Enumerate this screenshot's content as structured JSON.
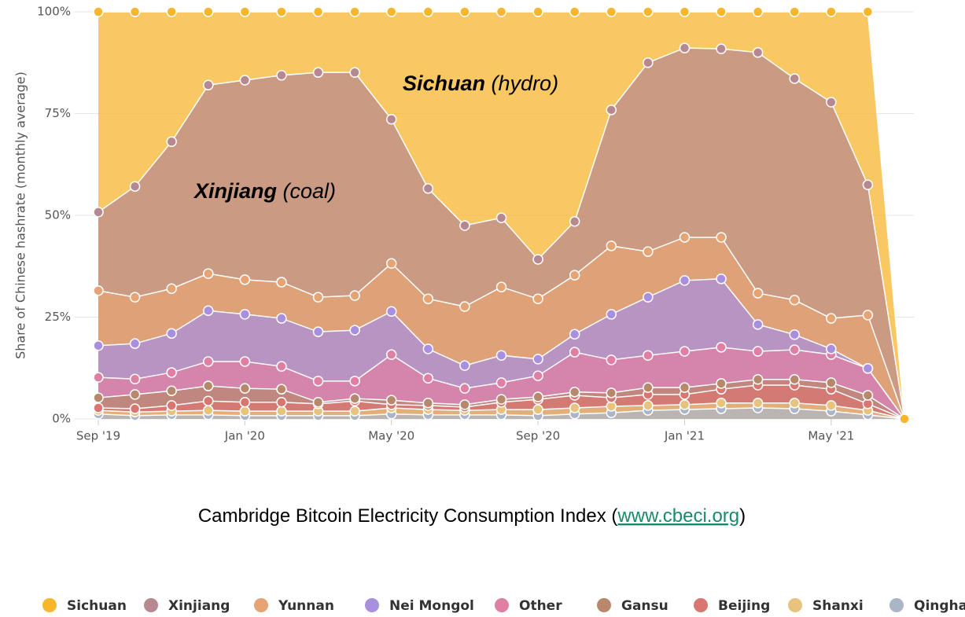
{
  "chart_data": {
    "type": "stacked_area",
    "y_label": "Share of Chinese hashrate (monthly average)",
    "categories": [
      "Sep '19",
      null,
      null,
      null,
      "Jan '20",
      null,
      null,
      null,
      "May '20",
      null,
      null,
      null,
      "Sep '20",
      null,
      null,
      null,
      "Jan '21",
      null,
      null,
      null,
      "May '21",
      null,
      null
    ],
    "ylim": [
      0,
      100
    ],
    "yticks": [
      {
        "value": 0,
        "label": "0%"
      },
      {
        "value": 25,
        "label": "25%"
      },
      {
        "value": 50,
        "label": "50%"
      },
      {
        "value": 75,
        "label": "75%"
      },
      {
        "value": 100,
        "label": "100%"
      }
    ],
    "grid": true,
    "legend": "bottom",
    "series": [
      {
        "name": "Qinghai",
        "color": "#aab5c8",
        "values": [
          1.2,
          0.8,
          1,
          1,
          0.8,
          0.8,
          0.8,
          0.8,
          1.2,
          1,
          1,
          1,
          0.8,
          1.2,
          1.5,
          2.1,
          2.3,
          2.5,
          2.7,
          2.5,
          1.9,
          1,
          0
        ]
      },
      {
        "name": "Shanxi",
        "color": "#e8c37e",
        "values": [
          0.9,
          0.9,
          0.9,
          1.1,
          1.1,
          1.1,
          1.1,
          1.1,
          1.5,
          1.3,
          1.1,
          1.3,
          1.5,
          1.5,
          1.6,
          1.2,
          1.2,
          1.4,
          1.2,
          1.4,
          1.4,
          1.1,
          0
        ]
      },
      {
        "name": "Beijing",
        "color": "#d97670",
        "values": [
          0.6,
          0.8,
          1.4,
          2.3,
          2.2,
          2.2,
          1.8,
          2.5,
          0.8,
          1,
          0.8,
          1.8,
          2.5,
          3.1,
          2.1,
          2.7,
          2.5,
          3.4,
          4.4,
          4.4,
          4,
          1.6,
          0
        ]
      },
      {
        "name": "Gansu",
        "color": "#b8886c",
        "values": [
          2.5,
          3.5,
          3.6,
          3.7,
          3.4,
          3.2,
          0.4,
          0.6,
          1.1,
          0.6,
          0.6,
          0.7,
          0.6,
          0.8,
          1.2,
          1.7,
          1.7,
          1.4,
          1.4,
          1.4,
          1.6,
          2.1,
          0
        ]
      },
      {
        "name": "Other",
        "color": "#e07fa4",
        "values": [
          5,
          3.8,
          4.5,
          6,
          6.6,
          5.6,
          5.2,
          4.3,
          11.2,
          6.1,
          4,
          4.1,
          5.2,
          9.8,
          8.1,
          7.9,
          8.9,
          8.9,
          6.9,
          7.3,
          6.9,
          6.6,
          0
        ]
      },
      {
        "name": "Nei Mongol",
        "color": "#a98fe0",
        "values": [
          7.8,
          8.7,
          9.6,
          12.5,
          11.6,
          11.8,
          12.1,
          12.5,
          10.6,
          7.2,
          5.6,
          6.7,
          4.1,
          4.4,
          11.2,
          14.3,
          17.4,
          16.8,
          6.6,
          3.7,
          1.4,
          0,
          0
        ]
      },
      {
        "name": "Yunnan",
        "color": "#e6a474",
        "values": [
          13.5,
          11.4,
          11,
          9.1,
          8.5,
          8.9,
          8.5,
          8.5,
          11.8,
          12.3,
          14.5,
          16.8,
          14.8,
          14.5,
          16.8,
          11.2,
          10.6,
          10.2,
          7.7,
          8.5,
          7.5,
          13.1,
          0
        ]
      },
      {
        "name": "Xinjiang",
        "color": "#b78890",
        "values": [
          19.3,
          27.2,
          36.1,
          46.3,
          49,
          50.8,
          55.2,
          54.8,
          35.4,
          27.1,
          19.9,
          17,
          9.7,
          13.2,
          33.4,
          46.4,
          46.5,
          46.3,
          59.1,
          54.4,
          53.1,
          32,
          0
        ]
      },
      {
        "name": "Sichuan",
        "color": "#f8b62d",
        "values": [
          49.2,
          42.9,
          31.9,
          18,
          16.8,
          15.6,
          14.9,
          14.9,
          26.4,
          43.4,
          52.5,
          50.6,
          60.8,
          51.5,
          24.1,
          12.5,
          8.9,
          9.1,
          10,
          16.4,
          22.2,
          42.5,
          0
        ]
      }
    ],
    "annotations": [
      {
        "bold": "Sichuan",
        "text": "(hydro)"
      },
      {
        "bold": "Xinjiang",
        "text": "(coal)"
      }
    ],
    "source": {
      "prefix": "Cambridge Bitcoin Electricity Consumption Index (",
      "link": "www.cbeci.org",
      "suffix": ")"
    }
  }
}
